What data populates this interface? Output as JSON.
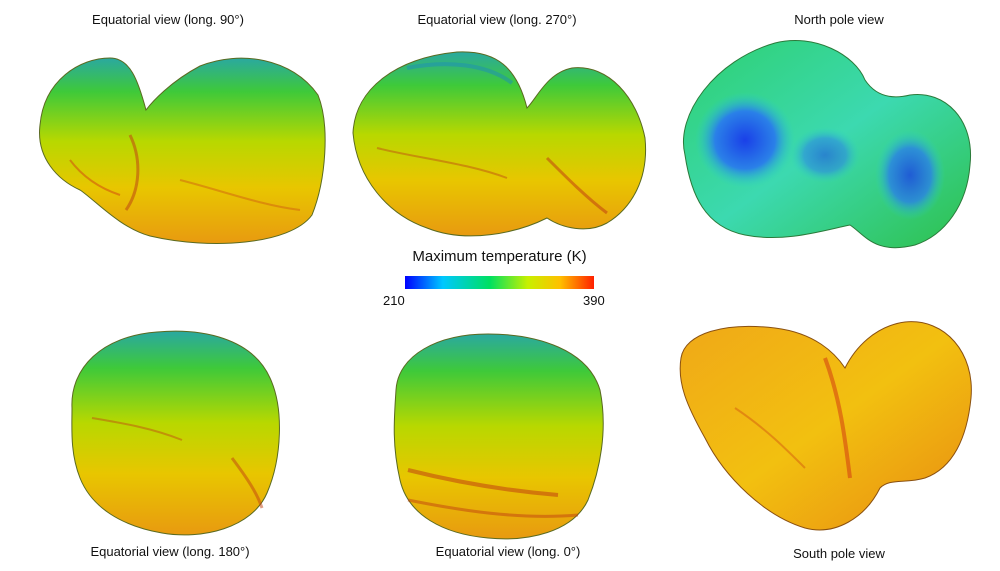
{
  "views": [
    {
      "id": "eq-90",
      "label": "Equatorial view (long. 90°)"
    },
    {
      "id": "eq-270",
      "label": "Equatorial view (long. 270°)"
    },
    {
      "id": "north",
      "label": "North pole view"
    },
    {
      "id": "eq-180",
      "label": "Equatorial view (long. 180°)"
    },
    {
      "id": "eq-0",
      "label": "Equatorial view (long. 0°)"
    },
    {
      "id": "south",
      "label": "South pole view"
    }
  ],
  "colorbar": {
    "title": "Maximum temperature (K)",
    "min": "210",
    "max": "390",
    "stops": [
      "#0000ff",
      "#00c8ff",
      "#00e060",
      "#c8f000",
      "#ffc000",
      "#ff2000"
    ]
  },
  "colors": {
    "cold_blue": "#1a4fe0",
    "cyan": "#2fd6d0",
    "green": "#3ed13a",
    "yellow": "#e6d800",
    "orange": "#f0a010",
    "red": "#e84010"
  }
}
